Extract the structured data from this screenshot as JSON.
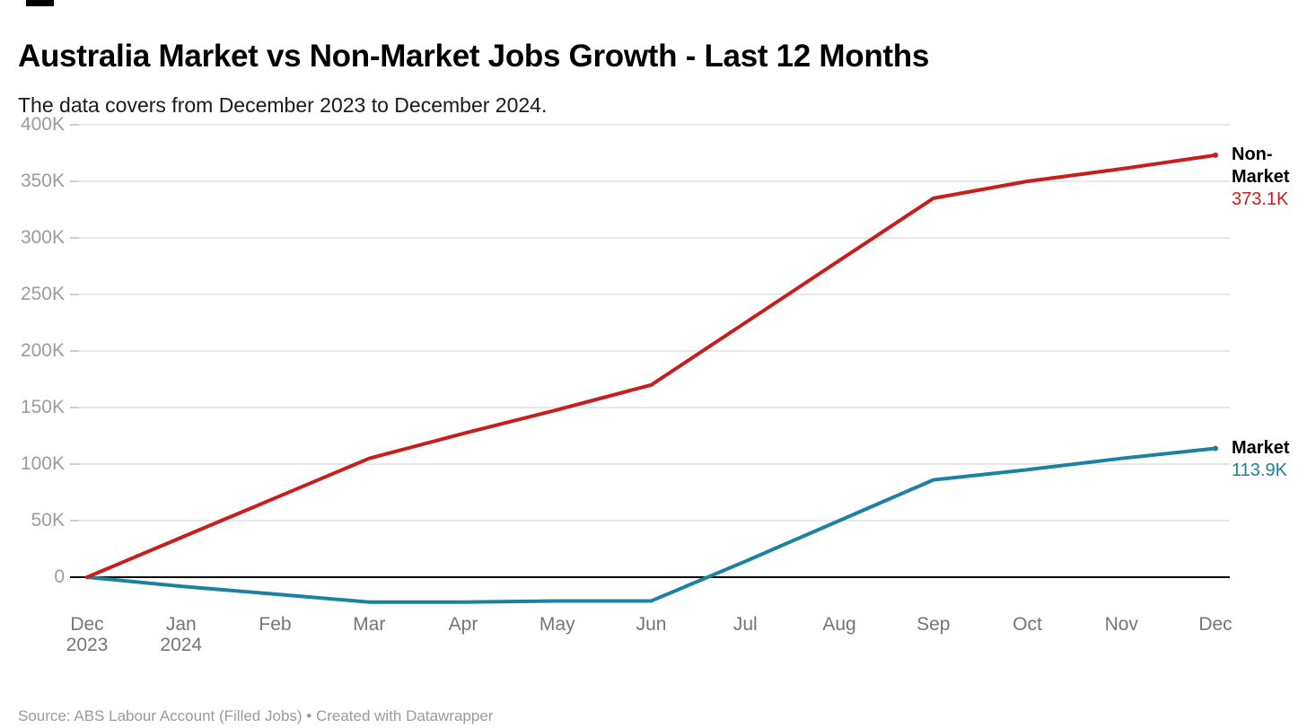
{
  "header": {
    "title": "Australia Market vs Non-Market Jobs Growth - Last 12 Months",
    "subtitle": "The data covers from December 2023 to December 2024."
  },
  "footer": {
    "source": "Source: ABS Labour Account (Filled Jobs) • Created with Datawrapper"
  },
  "colors": {
    "non_market": "#c71e1d",
    "market": "#1d81a2",
    "grid_line": "#e0e0e0",
    "grid_tick": "#bdbdbd",
    "zero_line": "#000000",
    "y_axis_text": "#9b9b9b",
    "x_axis_text": "#757575",
    "title_text": "#000000",
    "source_text": "#9a9a9a"
  },
  "chart_data": {
    "type": "line",
    "title": "Australia Market vs Non-Market Jobs Growth - Last 12 Months",
    "subtitle": "The data covers from December 2023 to December 2024.",
    "xlabel": "",
    "ylabel": "",
    "ylim": [
      -30000,
      400000
    ],
    "grid": "horizontal",
    "legend_position": "end-of-line",
    "categories": [
      "Dec 2023",
      "Jan 2024",
      "Feb",
      "Mar",
      "Apr",
      "May",
      "Jun",
      "Jul",
      "Aug",
      "Sep",
      "Oct",
      "Nov",
      "Dec"
    ],
    "x_ticks": [
      {
        "label": "Dec",
        "sub": "2023"
      },
      {
        "label": "Jan",
        "sub": "2024"
      },
      {
        "label": "Feb",
        "sub": ""
      },
      {
        "label": "Mar",
        "sub": ""
      },
      {
        "label": "Apr",
        "sub": ""
      },
      {
        "label": "May",
        "sub": ""
      },
      {
        "label": "Jun",
        "sub": ""
      },
      {
        "label": "Jul",
        "sub": ""
      },
      {
        "label": "Aug",
        "sub": ""
      },
      {
        "label": "Sep",
        "sub": ""
      },
      {
        "label": "Oct",
        "sub": ""
      },
      {
        "label": "Nov",
        "sub": ""
      },
      {
        "label": "Dec",
        "sub": ""
      }
    ],
    "y_ticks": [
      {
        "value": 0,
        "label": "0"
      },
      {
        "value": 50000,
        "label": "50K"
      },
      {
        "value": 100000,
        "label": "100K"
      },
      {
        "value": 150000,
        "label": "150K"
      },
      {
        "value": 200000,
        "label": "200K"
      },
      {
        "value": 250000,
        "label": "250K"
      },
      {
        "value": 300000,
        "label": "300K"
      },
      {
        "value": 350000,
        "label": "350K"
      },
      {
        "value": 400000,
        "label": "400K"
      }
    ],
    "series": [
      {
        "name": "Non-Market",
        "color": "#c71e1d",
        "values": [
          0,
          35000,
          70000,
          105000,
          127000,
          148000,
          170000,
          225000,
          280000,
          335000,
          350000,
          361000,
          373100
        ],
        "end_label": {
          "name_lines": [
            "Non-",
            "Market"
          ],
          "value": "373.1K"
        }
      },
      {
        "name": "Market",
        "color": "#1d81a2",
        "values": [
          0,
          -8000,
          -15000,
          -22000,
          -22000,
          -21000,
          -21000,
          14000,
          50000,
          86000,
          95000,
          105000,
          113900
        ],
        "end_label": {
          "name_lines": [
            "Market"
          ],
          "value": "113.9K"
        }
      }
    ]
  }
}
